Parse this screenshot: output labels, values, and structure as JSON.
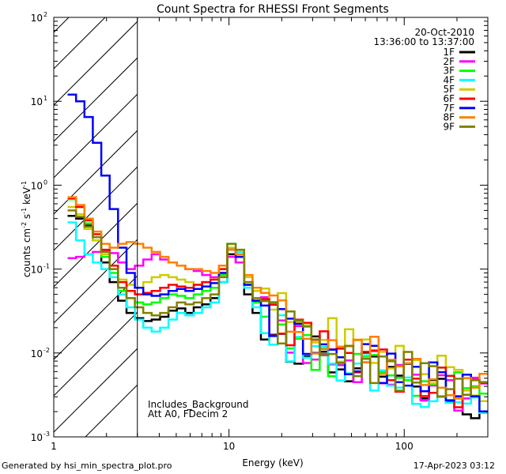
{
  "chart_data": {
    "type": "line",
    "title": "Count Spectra for RHESSI Front Segments",
    "xlabel": "Energy (keV)",
    "ylabel": "counts cm-2 s-1 keV-1",
    "xscale": "log",
    "yscale": "log",
    "xlim": [
      1,
      300
    ],
    "ylim": [
      0.001,
      100
    ],
    "x_ticks": [
      {
        "value": 1,
        "label": "1"
      },
      {
        "value": 10,
        "label": "10"
      },
      {
        "value": 100,
        "label": "100"
      }
    ],
    "y_ticks": [
      {
        "value": 100,
        "label": "10",
        "exp": "2"
      },
      {
        "value": 10,
        "label": "10",
        "exp": "1"
      },
      {
        "value": 1,
        "label": "10",
        "exp": "0"
      },
      {
        "value": 0.1,
        "label": "10",
        "exp": "-1"
      },
      {
        "value": 0.01,
        "label": "10",
        "exp": "-2"
      },
      {
        "value": 0.001,
        "label": "10",
        "exp": "-3"
      }
    ],
    "ylabel_parts": {
      "a": "counts cm",
      "b": "-2",
      "c": " s",
      "d": "-1",
      "e": " keV",
      "f": "-1"
    },
    "date": "20-Oct-2010",
    "time_range": "13:36:00 to 13:37:00",
    "excluded_energy_range_keV": [
      1,
      3
    ],
    "annotations": [
      "Includes_Background",
      "Att A0, FDecim 2"
    ],
    "series": [
      {
        "name": "1F",
        "color": "#000000",
        "values": [
          0.43,
          0.4,
          0.33,
          0.22,
          0.12,
          0.07,
          0.042,
          0.03,
          0.026,
          0.024,
          0.025,
          0.027,
          0.032,
          0.034,
          0.03,
          0.035,
          0.038,
          0.045,
          0.07,
          0.15,
          0.12,
          0.05,
          0.03,
          0.022,
          0.02,
          0.017,
          0.014,
          0.011,
          0.01,
          0.009,
          0.008,
          0.0075,
          0.007,
          0.0065,
          0.006,
          0.0058,
          0.0056,
          0.0054,
          0.005,
          0.0048,
          0.0045,
          0.0042,
          0.004,
          0.0038,
          0.0035,
          0.0033,
          0.003,
          0.0028,
          0.0026,
          0.0025
        ]
      },
      {
        "name": "2F",
        "color": "#ff00ff",
        "values": [
          0.135,
          0.14,
          0.15,
          0.16,
          0.165,
          0.155,
          0.12,
          0.1,
          0.11,
          0.13,
          0.15,
          0.13,
          0.12,
          0.11,
          0.1,
          0.095,
          0.085,
          0.08,
          0.09,
          0.14,
          0.12,
          0.06,
          0.04,
          0.028,
          0.022,
          0.018,
          0.015,
          0.013,
          0.011,
          0.01,
          0.009,
          0.0085,
          0.008,
          0.0075,
          0.007,
          0.0066,
          0.0062,
          0.0058,
          0.0055,
          0.0052,
          0.005,
          0.0047,
          0.0044,
          0.0041,
          0.0038,
          0.0036,
          0.0033,
          0.0031,
          0.0029,
          0.0027
        ]
      },
      {
        "name": "3F",
        "color": "#00ff00",
        "values": [
          0.68,
          0.55,
          0.35,
          0.22,
          0.14,
          0.09,
          0.055,
          0.045,
          0.04,
          0.038,
          0.04,
          0.045,
          0.05,
          0.048,
          0.045,
          0.05,
          0.055,
          0.06,
          0.085,
          0.17,
          0.14,
          0.06,
          0.04,
          0.03,
          0.025,
          0.02,
          0.017,
          0.014,
          0.012,
          0.011,
          0.01,
          0.009,
          0.0085,
          0.008,
          0.0075,
          0.007,
          0.0066,
          0.0062,
          0.0058,
          0.0055,
          0.0052,
          0.0049,
          0.0046,
          0.0043,
          0.004,
          0.0037,
          0.0034,
          0.0032,
          0.003,
          0.0028
        ]
      },
      {
        "name": "4F",
        "color": "#00ffff",
        "values": [
          0.36,
          0.22,
          0.15,
          0.12,
          0.1,
          0.08,
          0.05,
          0.035,
          0.025,
          0.02,
          0.018,
          0.02,
          0.025,
          0.03,
          0.028,
          0.03,
          0.035,
          0.04,
          0.07,
          0.2,
          0.16,
          0.06,
          0.035,
          0.025,
          0.02,
          0.016,
          0.013,
          0.011,
          0.01,
          0.009,
          0.008,
          0.0075,
          0.007,
          0.0065,
          0.006,
          0.0057,
          0.0054,
          0.0051,
          0.0048,
          0.0045,
          0.0042,
          0.004,
          0.0038,
          0.0036,
          0.0034,
          0.0032,
          0.003,
          0.0028,
          0.0026,
          0.0024
        ]
      },
      {
        "name": "5F",
        "color": "#cccc00",
        "values": [
          0.55,
          0.45,
          0.3,
          0.22,
          0.15,
          0.1,
          0.075,
          0.065,
          0.06,
          0.07,
          0.08,
          0.085,
          0.08,
          0.075,
          0.07,
          0.065,
          0.07,
          0.075,
          0.1,
          0.18,
          0.15,
          0.08,
          0.055,
          0.042,
          0.035,
          0.03,
          0.026,
          0.022,
          0.02,
          0.018,
          0.016,
          0.015,
          0.014,
          0.013,
          0.012,
          0.011,
          0.01,
          0.0095,
          0.009,
          0.0085,
          0.008,
          0.0075,
          0.007,
          0.0065,
          0.006,
          0.0055,
          0.005,
          0.0046,
          0.0043,
          0.004
        ]
      },
      {
        "name": "6F",
        "color": "#ff0000",
        "values": [
          0.7,
          0.55,
          0.38,
          0.26,
          0.17,
          0.11,
          0.07,
          0.055,
          0.05,
          0.052,
          0.055,
          0.06,
          0.065,
          0.062,
          0.06,
          0.065,
          0.07,
          0.075,
          0.1,
          0.17,
          0.14,
          0.065,
          0.042,
          0.032,
          0.026,
          0.021,
          0.018,
          0.015,
          0.013,
          0.012,
          0.011,
          0.01,
          0.0092,
          0.0085,
          0.008,
          0.0075,
          0.007,
          0.0066,
          0.0062,
          0.0058,
          0.0055,
          0.0052,
          0.0049,
          0.0046,
          0.0043,
          0.004,
          0.0037,
          0.0034,
          0.0032,
          0.003
        ]
      },
      {
        "name": "7F",
        "color": "#0000ff",
        "values": [
          12,
          10,
          6.5,
          3.2,
          1.3,
          0.52,
          0.18,
          0.09,
          0.06,
          0.05,
          0.048,
          0.05,
          0.055,
          0.058,
          0.055,
          0.058,
          0.062,
          0.068,
          0.09,
          0.17,
          0.14,
          0.065,
          0.042,
          0.032,
          0.026,
          0.021,
          0.018,
          0.015,
          0.013,
          0.012,
          0.011,
          0.01,
          0.0093,
          0.0086,
          0.008,
          0.0075,
          0.007,
          0.0066,
          0.0062,
          0.0058,
          0.0054,
          0.005,
          0.0047,
          0.0044,
          0.0041,
          0.0038,
          0.0035,
          0.0033,
          0.0031,
          0.0029
        ]
      },
      {
        "name": "8F",
        "color": "#ff8000",
        "values": [
          0.72,
          0.58,
          0.4,
          0.28,
          0.2,
          0.18,
          0.2,
          0.21,
          0.2,
          0.18,
          0.16,
          0.14,
          0.12,
          0.11,
          0.1,
          0.1,
          0.095,
          0.09,
          0.11,
          0.17,
          0.15,
          0.085,
          0.06,
          0.045,
          0.036,
          0.03,
          0.026,
          0.022,
          0.019,
          0.017,
          0.015,
          0.014,
          0.013,
          0.012,
          0.011,
          0.01,
          0.0095,
          0.009,
          0.0085,
          0.008,
          0.0075,
          0.007,
          0.0066,
          0.0062,
          0.0058,
          0.0054,
          0.005,
          0.0046,
          0.0043,
          0.004
        ]
      },
      {
        "name": "9F",
        "color": "#808000",
        "values": [
          0.5,
          0.42,
          0.32,
          0.24,
          0.16,
          0.1,
          0.06,
          0.045,
          0.035,
          0.03,
          0.028,
          0.03,
          0.035,
          0.04,
          0.038,
          0.04,
          0.045,
          0.05,
          0.08,
          0.2,
          0.17,
          0.07,
          0.045,
          0.034,
          0.028,
          0.023,
          0.019,
          0.016,
          0.014,
          0.012,
          0.011,
          0.01,
          0.0095,
          0.009,
          0.0085,
          0.008,
          0.0075,
          0.007,
          0.0066,
          0.0062,
          0.0058,
          0.0054,
          0.005,
          0.0047,
          0.0044,
          0.0041,
          0.0038,
          0.0035,
          0.0033,
          0.003
        ]
      }
    ]
  },
  "footer": {
    "generated_by": "Generated by hsi_min_spectra_plot.pro",
    "timestamp": "17-Apr-2023 03:12"
  }
}
